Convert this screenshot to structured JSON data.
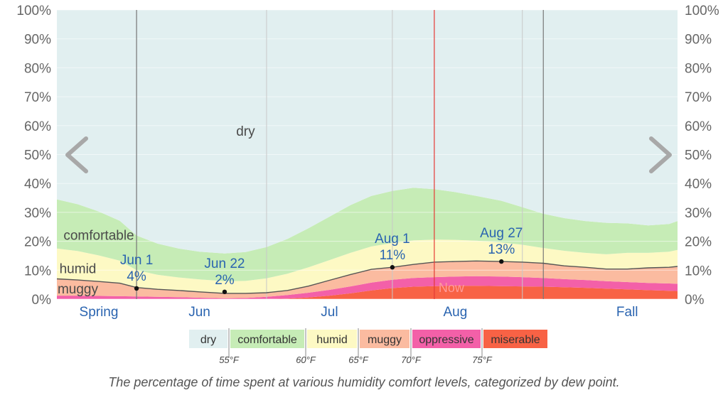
{
  "chart_data": {
    "type": "area",
    "stacking": "percent",
    "x_unit": "day",
    "x": [
      "May 13",
      "May 18",
      "May 23",
      "May 28",
      "Jun 1",
      "Jun 6",
      "Jun 11",
      "Jun 16",
      "Jun 22",
      "Jun 27",
      "Jul 2",
      "Jul 7",
      "Jul 12",
      "Jul 17",
      "Jul 22",
      "Jul 27",
      "Aug 1",
      "Aug 6",
      "Aug 11",
      "Aug 16",
      "Aug 21",
      "Aug 27",
      "Sep 1",
      "Sep 6",
      "Sep 11",
      "Sep 16",
      "Sep 21",
      "Sep 26",
      "Oct 1",
      "Oct 6",
      "Oct 8"
    ],
    "series": [
      {
        "name": "miserable",
        "color": "#f86245",
        "values": [
          0,
          0,
          0,
          0,
          0,
          0,
          0,
          0,
          0,
          0,
          0,
          0.2,
          0.6,
          1.2,
          2.0,
          3.0,
          3.8,
          4.3,
          4.5,
          4.6,
          4.6,
          4.5,
          4.4,
          4.3,
          4.1,
          3.9,
          3.6,
          3.4,
          3.1,
          2.9,
          2.8
        ]
      },
      {
        "name": "oppressive",
        "color": "#f360a8",
        "values": [
          1.2,
          1.2,
          1.1,
          1.0,
          0.9,
          0.8,
          0.7,
          0.5,
          0.3,
          0.4,
          0.8,
          1.2,
          1.6,
          2.0,
          2.4,
          2.7,
          2.9,
          3.0,
          3.1,
          3.2,
          3.3,
          3.3,
          3.2,
          3.0,
          2.8,
          2.7,
          2.6,
          2.5,
          2.5,
          2.5,
          2.5
        ]
      },
      {
        "name": "muggy",
        "color": "#fbbba0",
        "values": [
          5.8,
          5.4,
          5.0,
          4.5,
          3.1,
          2.6,
          2.3,
          2.0,
          1.7,
          1.6,
          1.4,
          1.6,
          2.3,
          3.3,
          4.1,
          4.6,
          4.3,
          4.7,
          5.2,
          5.2,
          5.3,
          5.2,
          5.2,
          5.1,
          4.6,
          4.4,
          4.2,
          4.5,
          5.2,
          5.6,
          6.0
        ]
      },
      {
        "name": "humid",
        "color": "#fdf9c4",
        "values": [
          10.5,
          10.0,
          9.0,
          7.8,
          6.0,
          5.0,
          4.5,
          4.3,
          4.2,
          4.3,
          5.0,
          5.8,
          6.5,
          7.0,
          7.5,
          7.9,
          8.4,
          8.3,
          7.8,
          7.5,
          7.0,
          6.6,
          6.0,
          5.3,
          5.2,
          5.0,
          5.1,
          5.6,
          5.2,
          5.4,
          5.7
        ]
      },
      {
        "name": "comfortable",
        "color": "#c6ecb6",
        "values": [
          17.0,
          16.2,
          15.2,
          13.8,
          12.0,
          10.8,
          10.0,
          9.6,
          9.6,
          10.0,
          10.8,
          12.0,
          13.5,
          15.0,
          16.5,
          17.5,
          18.0,
          18.2,
          17.4,
          16.5,
          15.5,
          14.4,
          13.0,
          11.8,
          11.3,
          11.0,
          10.9,
          10.2,
          9.5,
          9.6,
          10.0
        ]
      },
      {
        "name": "dry",
        "color": "#e1eff0",
        "values": [
          65.5,
          67.2,
          69.7,
          72.9,
          78.0,
          80.8,
          82.5,
          83.6,
          84.2,
          83.7,
          82.0,
          79.2,
          75.5,
          71.5,
          67.5,
          64.3,
          62.6,
          61.5,
          62.0,
          63.0,
          64.3,
          66.0,
          68.2,
          70.5,
          72.0,
          73.0,
          73.6,
          73.8,
          74.5,
          74.0,
          73.0
        ]
      }
    ],
    "ylim": [
      0,
      100
    ],
    "y_ticks": [
      "0%",
      "10%",
      "20%",
      "30%",
      "40%",
      "50%",
      "60%",
      "70%",
      "80%",
      "90%",
      "100%"
    ],
    "x_labels": [
      {
        "label": "Spring",
        "at": "May 23"
      },
      {
        "label": "Jun",
        "at": "Jun 16"
      },
      {
        "label": "Jul",
        "at": "Jul 17"
      },
      {
        "label": "Aug",
        "at": "Aug 16"
      },
      {
        "label": "Fall",
        "at": "Sep 26"
      }
    ],
    "vertical_lines": [
      "Jun 1",
      "Jul 2",
      "Aug 1",
      "Sep 1"
    ],
    "season_lines": [
      "Jun 1",
      "Sep 6"
    ],
    "now_line": {
      "at": "Aug 11",
      "label": "Now"
    },
    "band_labels": [
      {
        "label": "dry",
        "at": "Jun 27",
        "value": 58
      },
      {
        "label": "comfortable",
        "at": "May 23",
        "value": 22
      },
      {
        "label": "humid",
        "at": "May 18",
        "value": 10.5
      },
      {
        "label": "muggy",
        "at": "May 18",
        "value": 3.4
      }
    ],
    "annotations": [
      {
        "date": "Jun 1",
        "value": "4%",
        "y": 3.7
      },
      {
        "date": "Jun 22",
        "value": "2%",
        "y": 2.5
      },
      {
        "date": "Aug 1",
        "value": "11%",
        "y": 11.0
      },
      {
        "date": "Aug 27",
        "value": "13%",
        "y": 13.0
      }
    ],
    "legend": [
      {
        "label": "dry",
        "color": "#e1eff0"
      },
      {
        "label": "comfortable",
        "color": "#c6ecb6"
      },
      {
        "label": "humid",
        "color": "#fdf9c4"
      },
      {
        "label": "muggy",
        "color": "#fbbba0"
      },
      {
        "label": "oppressive",
        "color": "#f360a8"
      },
      {
        "label": "miserable",
        "color": "#f86245"
      }
    ],
    "dew_point_thresholds": [
      "55°F",
      "60°F",
      "65°F",
      "70°F",
      "75°F"
    ],
    "nav": {
      "prev": "previous-period",
      "next": "next-period"
    }
  },
  "caption": "The percentage of time spent at various humidity comfort levels, categorized by dew point."
}
